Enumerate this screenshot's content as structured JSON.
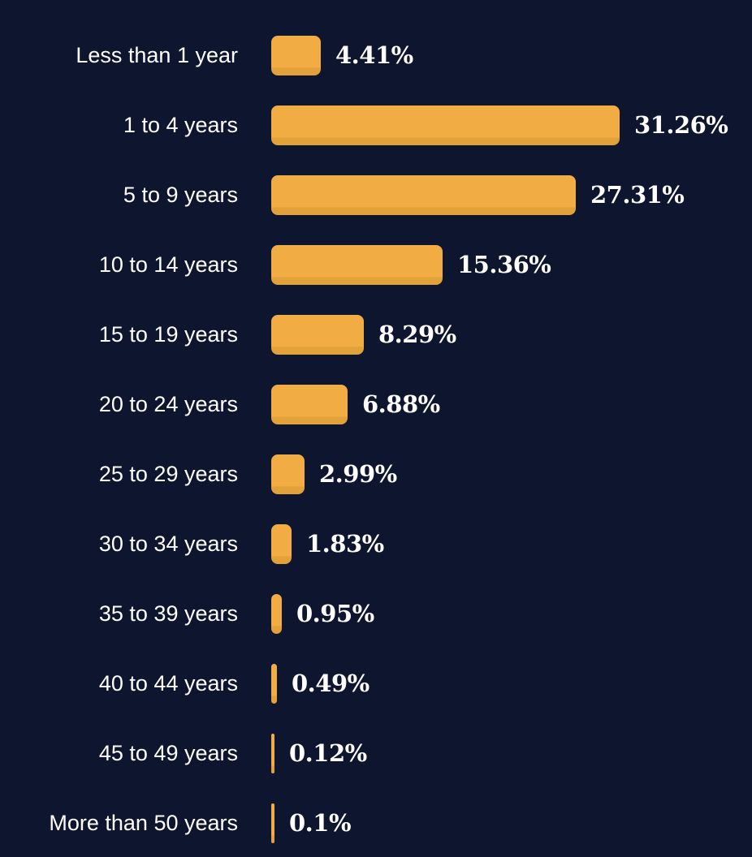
{
  "colors": {
    "background": "#0E152E",
    "bar": "#F2AC44",
    "bar_bottom_shadow": "#E2A139",
    "label_text": "#FFFFFF",
    "value_text": "#FFFFFF"
  },
  "chart_data": {
    "type": "bar",
    "orientation": "horizontal",
    "title": "",
    "xlabel": "",
    "ylabel": "",
    "grid": false,
    "legend": false,
    "xlim": [
      0,
      33
    ],
    "categories": [
      "Less than 1 year",
      "1 to 4 years",
      "5 to 9 years",
      "10 to 14 years",
      "15 to 19 years",
      "20 to 24 years",
      "25 to 29 years",
      "30 to 34 years",
      "35 to 39 years",
      "40 to 44 years",
      "45 to 49 years",
      "More than 50 years"
    ],
    "values": [
      4.41,
      31.26,
      27.31,
      15.36,
      8.29,
      6.88,
      2.99,
      1.83,
      0.95,
      0.49,
      0.12,
      0.1
    ],
    "value_labels": [
      "4.41%",
      "31.26%",
      "27.31%",
      "15.36%",
      "8.29%",
      "6.88%",
      "2.99%",
      "1.83%",
      "0.95%",
      "0.49%",
      "0.12%",
      "0.1%"
    ]
  }
}
